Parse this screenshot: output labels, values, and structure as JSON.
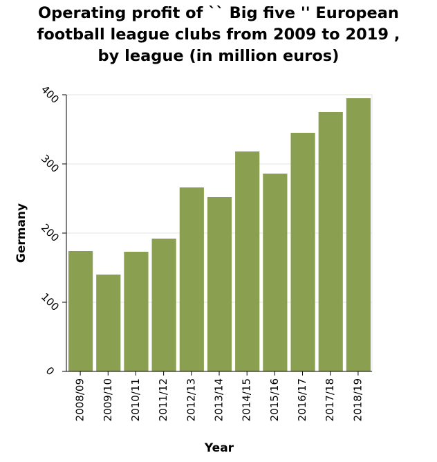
{
  "chart_data": {
    "type": "bar",
    "title_lines": [
      "Operating profit of `` Big five '' European",
      "football league clubs from 2009 to 2019 ,",
      "by league (in million euros)"
    ],
    "xlabel": "Year",
    "ylabel": "Germany",
    "categories": [
      "2008/09",
      "2009/10",
      "2010/11",
      "2011/12",
      "2012/13",
      "2013/14",
      "2014/15",
      "2015/16",
      "2016/17",
      "2017/18",
      "2018/19"
    ],
    "values": [
      174,
      140,
      173,
      192,
      266,
      252,
      318,
      286,
      345,
      375,
      395
    ],
    "ylim": [
      0,
      400
    ],
    "yticks": [
      0,
      100,
      200,
      300,
      400
    ],
    "bar_color": "#8aa050",
    "grid": true,
    "grid_color": "#e3e3e3",
    "legend": "none"
  }
}
